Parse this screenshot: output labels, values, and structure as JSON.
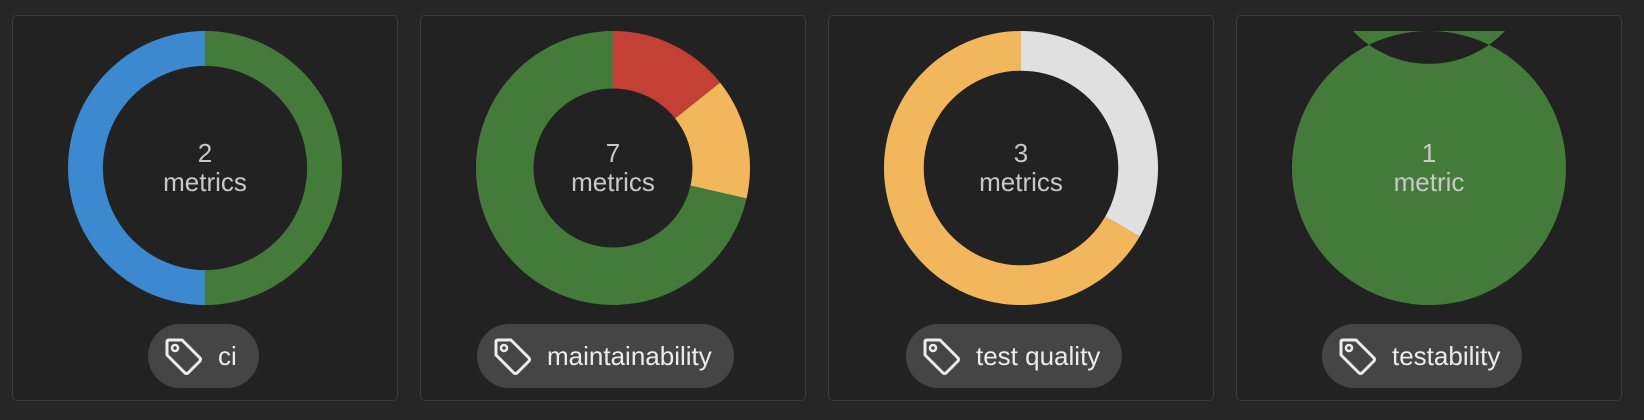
{
  "cards": [
    {
      "count": "2",
      "unit": "metrics",
      "tag": "ci",
      "tag_icon": "tag-icon",
      "segments": [
        {
          "status": "success",
          "value": 1,
          "color": "#447a3a"
        },
        {
          "status": "informative",
          "value": 1,
          "color": "#3c89d0"
        }
      ]
    },
    {
      "count": "7",
      "unit": "metrics",
      "tag": "maintainability",
      "tag_icon": "tag-icon",
      "segments": [
        {
          "status": "target not met",
          "value": 1,
          "color": "#c43f36"
        },
        {
          "status": "near target",
          "value": 1,
          "color": "#f2b75c"
        },
        {
          "status": "success",
          "value": 5,
          "color": "#447a3a"
        }
      ]
    },
    {
      "count": "3",
      "unit": "metrics",
      "tag": "test quality",
      "tag_icon": "tag-icon",
      "segments": [
        {
          "status": "unknown",
          "value": 1,
          "color": "#e0e0e0"
        },
        {
          "status": "near target",
          "value": 2,
          "color": "#f2b75c"
        }
      ]
    },
    {
      "count": "1",
      "unit": "metric",
      "tag": "testability",
      "tag_icon": "tag-icon",
      "segments": [
        {
          "status": "success",
          "value": 1,
          "color": "#447a3a"
        }
      ]
    }
  ]
}
